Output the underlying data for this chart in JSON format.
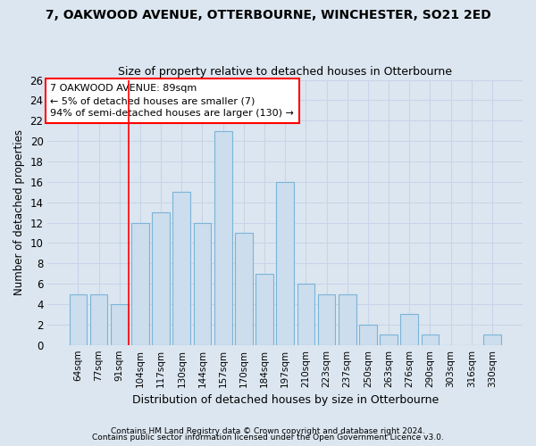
{
  "title1": "7, OAKWOOD AVENUE, OTTERBOURNE, WINCHESTER, SO21 2ED",
  "title2": "Size of property relative to detached houses in Otterbourne",
  "xlabel": "Distribution of detached houses by size in Otterbourne",
  "ylabel": "Number of detached properties",
  "categories": [
    "64sqm",
    "77sqm",
    "91sqm",
    "104sqm",
    "117sqm",
    "130sqm",
    "144sqm",
    "157sqm",
    "170sqm",
    "184sqm",
    "197sqm",
    "210sqm",
    "223sqm",
    "237sqm",
    "250sqm",
    "263sqm",
    "276sqm",
    "290sqm",
    "303sqm",
    "316sqm",
    "330sqm"
  ],
  "values": [
    5,
    5,
    4,
    12,
    13,
    15,
    12,
    21,
    11,
    7,
    16,
    6,
    5,
    5,
    2,
    1,
    3,
    1,
    0,
    0,
    1
  ],
  "bar_color": "#ccdded",
  "bar_edge_color": "#7ab4d8",
  "red_line_index": 2,
  "annotation_line1": "7 OAKWOOD AVENUE: 89sqm",
  "annotation_line2": "← 5% of detached houses are smaller (7)",
  "annotation_line3": "94% of semi-detached houses are larger (130) →",
  "annotation_box_color": "white",
  "annotation_box_edge": "red",
  "red_line_color": "red",
  "ylim": [
    0,
    26
  ],
  "yticks": [
    0,
    2,
    4,
    6,
    8,
    10,
    12,
    14,
    16,
    18,
    20,
    22,
    24,
    26
  ],
  "grid_color": "#c8d4e8",
  "background_color": "#dce6f0",
  "footnote1": "Contains HM Land Registry data © Crown copyright and database right 2024.",
  "footnote2": "Contains public sector information licensed under the Open Government Licence v3.0."
}
